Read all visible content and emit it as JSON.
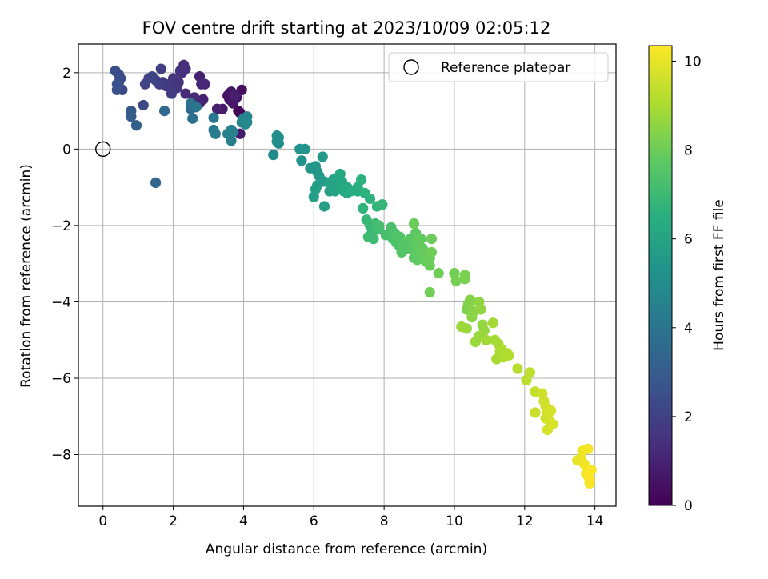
{
  "chart_data": {
    "type": "scatter",
    "title": "FOV centre drift starting at 2023/10/09 02:05:12",
    "xlabel": "Angular distance from reference (arcmin)",
    "ylabel": "Rotation from reference (arcmin)",
    "xlim": [
      -0.7,
      14.6
    ],
    "ylim": [
      -9.35,
      2.75
    ],
    "xticks": [
      0,
      2,
      4,
      6,
      8,
      10,
      12,
      14
    ],
    "yticks": [
      2,
      0,
      -2,
      -4,
      -6,
      -8
    ],
    "xtick_labels": [
      "0",
      "2",
      "4",
      "6",
      "8",
      "10",
      "12",
      "14"
    ],
    "ytick_labels": [
      "2",
      "0",
      "−2",
      "−4",
      "−6",
      "−8"
    ],
    "grid": true,
    "legend": {
      "placement": "top-right",
      "entries": [
        {
          "label": "Reference platepar",
          "marker": "open-circle"
        }
      ]
    },
    "reference_point": {
      "x": 0,
      "y": 0
    },
    "colorbar": {
      "label": "Hours from first FF file",
      "colormap": "viridis",
      "range": [
        0,
        10.35
      ],
      "ticks": [
        0,
        2,
        4,
        6,
        8,
        10
      ],
      "tick_labels": [
        "0",
        "2",
        "4",
        "6",
        "8",
        "10"
      ]
    },
    "series": [
      {
        "points": [
          [
            3.9,
            0.95,
            0.1
          ],
          [
            3.85,
            1.0,
            0.2
          ],
          [
            3.7,
            1.45,
            0.25
          ],
          [
            3.6,
            1.45,
            0.3
          ],
          [
            3.75,
            1.3,
            0.35
          ],
          [
            3.95,
            1.55,
            0.4
          ],
          [
            3.6,
            1.3,
            0.45
          ],
          [
            3.55,
            1.4,
            0.5
          ],
          [
            3.8,
            1.35,
            0.55
          ],
          [
            3.65,
            1.5,
            0.6
          ],
          [
            3.7,
            1.2,
            0.65
          ],
          [
            3.4,
            1.05,
            0.7
          ],
          [
            3.9,
            0.4,
            0.75
          ],
          [
            3.75,
            1.4,
            0.85
          ],
          [
            3.25,
            1.05,
            0.9
          ],
          [
            2.75,
            1.9,
            0.95
          ],
          [
            2.85,
            1.3,
            1.0
          ],
          [
            2.75,
            1.2,
            1.05
          ],
          [
            2.8,
            1.7,
            1.1
          ],
          [
            2.9,
            1.7,
            1.15
          ],
          [
            2.6,
            1.35,
            1.2
          ],
          [
            2.35,
            1.45,
            1.25
          ],
          [
            2.3,
            2.2,
            1.3
          ],
          [
            2.35,
            2.1,
            1.35
          ],
          [
            2.25,
            2.0,
            1.4
          ],
          [
            2.2,
            2.05,
            1.45
          ],
          [
            2.15,
            1.75,
            1.5
          ],
          [
            2.0,
            1.85,
            1.55
          ],
          [
            2.1,
            1.6,
            1.6
          ],
          [
            1.95,
            1.6,
            1.65
          ],
          [
            1.9,
            1.7,
            1.7
          ],
          [
            1.8,
            1.65,
            1.75
          ],
          [
            1.7,
            1.75,
            1.8
          ],
          [
            1.95,
            1.45,
            1.85
          ],
          [
            1.65,
            2.1,
            1.9
          ],
          [
            1.6,
            1.7,
            1.95
          ],
          [
            1.5,
            1.8,
            2.0
          ],
          [
            1.4,
            1.9,
            2.05
          ],
          [
            1.3,
            1.85,
            2.1
          ],
          [
            1.2,
            1.7,
            2.15
          ],
          [
            1.15,
            1.15,
            2.2
          ],
          [
            0.55,
            1.55,
            2.25
          ],
          [
            0.5,
            1.85,
            2.3
          ],
          [
            0.45,
            1.75,
            2.35
          ],
          [
            0.45,
            1.95,
            2.4
          ],
          [
            0.35,
            2.05,
            2.45
          ],
          [
            0.4,
            1.55,
            2.5
          ],
          [
            0.4,
            1.7,
            2.55
          ],
          [
            0.8,
            1.0,
            2.9
          ],
          [
            0.8,
            0.85,
            3.0
          ],
          [
            0.95,
            0.62,
            3.2
          ],
          [
            1.5,
            -0.88,
            3.4
          ],
          [
            1.75,
            1.0,
            3.5
          ],
          [
            2.5,
            1.05,
            3.6
          ],
          [
            2.55,
            1.1,
            3.7
          ],
          [
            2.55,
            0.8,
            3.8
          ],
          [
            2.5,
            1.2,
            3.9
          ],
          [
            2.65,
            1.1,
            4.0
          ],
          [
            3.15,
            0.82,
            4.1
          ],
          [
            3.15,
            0.5,
            4.2
          ],
          [
            3.2,
            0.4,
            4.3
          ],
          [
            3.55,
            0.4,
            4.35
          ],
          [
            3.65,
            0.22,
            4.4
          ],
          [
            3.7,
            0.45,
            4.45
          ],
          [
            3.65,
            0.5,
            4.5
          ],
          [
            3.95,
            0.7,
            4.6
          ],
          [
            4.05,
            0.65,
            4.65
          ],
          [
            4.0,
            0.8,
            4.7
          ],
          [
            4.1,
            0.85,
            4.75
          ],
          [
            4.1,
            0.7,
            4.8
          ],
          [
            4.85,
            -0.15,
            4.9
          ],
          [
            5.0,
            0.15,
            5.0
          ],
          [
            4.95,
            0.35,
            5.05
          ],
          [
            4.95,
            0.2,
            5.1
          ],
          [
            5.0,
            0.3,
            5.15
          ],
          [
            5.6,
            0.0,
            5.2
          ],
          [
            5.65,
            -0.3,
            5.25
          ],
          [
            5.75,
            0.0,
            5.3
          ],
          [
            5.9,
            -0.5,
            5.35
          ],
          [
            6.05,
            -0.45,
            5.4
          ],
          [
            6.1,
            -0.6,
            5.45
          ],
          [
            6.15,
            -0.7,
            5.5
          ],
          [
            6.25,
            -0.2,
            5.55
          ],
          [
            6.3,
            -0.85,
            5.6
          ],
          [
            6.05,
            -1.05,
            5.65
          ],
          [
            6.1,
            -0.95,
            5.7
          ],
          [
            6.0,
            -1.25,
            5.75
          ],
          [
            6.3,
            -1.5,
            5.8
          ],
          [
            6.45,
            -1.1,
            5.85
          ],
          [
            6.55,
            -0.8,
            5.9
          ],
          [
            6.6,
            -1.0,
            5.95
          ],
          [
            6.5,
            -0.9,
            6.0
          ],
          [
            6.6,
            -1.1,
            6.02
          ],
          [
            6.7,
            -0.75,
            6.05
          ],
          [
            6.75,
            -0.95,
            6.1
          ],
          [
            6.75,
            -0.65,
            6.15
          ],
          [
            6.8,
            -0.85,
            6.2
          ],
          [
            6.85,
            -1.1,
            6.25
          ],
          [
            6.95,
            -1.0,
            6.3
          ],
          [
            6.95,
            -1.15,
            6.35
          ],
          [
            7.05,
            -1.1,
            6.4
          ],
          [
            7.25,
            -1.1,
            6.45
          ],
          [
            7.25,
            -1.0,
            6.5
          ],
          [
            7.35,
            -0.8,
            6.55
          ],
          [
            7.45,
            -1.15,
            6.6
          ],
          [
            7.6,
            -1.3,
            6.65
          ],
          [
            7.4,
            -1.55,
            6.7
          ],
          [
            7.8,
            -1.5,
            6.75
          ],
          [
            7.95,
            -1.45,
            6.8
          ],
          [
            7.5,
            -1.85,
            6.85
          ],
          [
            7.6,
            -2.0,
            6.9
          ],
          [
            7.7,
            -2.1,
            6.95
          ],
          [
            7.65,
            -2.2,
            7.0
          ],
          [
            7.55,
            -2.3,
            7.02
          ],
          [
            7.7,
            -2.35,
            7.05
          ],
          [
            7.75,
            -1.95,
            7.1
          ],
          [
            7.85,
            -2.1,
            7.15
          ],
          [
            7.85,
            -2.0,
            7.2
          ],
          [
            8.05,
            -2.25,
            7.25
          ],
          [
            8.2,
            -2.05,
            7.3
          ],
          [
            8.25,
            -2.35,
            7.35
          ],
          [
            8.3,
            -2.2,
            7.38
          ],
          [
            8.35,
            -2.45,
            7.4
          ],
          [
            8.4,
            -2.5,
            7.42
          ],
          [
            8.45,
            -2.3,
            7.45
          ],
          [
            8.5,
            -2.4,
            7.48
          ],
          [
            8.55,
            -2.55,
            7.5
          ],
          [
            8.5,
            -2.7,
            7.52
          ],
          [
            8.6,
            -2.45,
            7.55
          ],
          [
            8.65,
            -2.6,
            7.58
          ],
          [
            8.7,
            -2.4,
            7.6
          ],
          [
            8.75,
            -2.35,
            7.62
          ],
          [
            8.8,
            -2.5,
            7.65
          ],
          [
            8.85,
            -2.65,
            7.68
          ],
          [
            8.85,
            -2.85,
            7.7
          ],
          [
            8.9,
            -2.2,
            7.72
          ],
          [
            8.9,
            -2.45,
            7.74
          ],
          [
            8.95,
            -2.7,
            7.76
          ],
          [
            8.95,
            -2.9,
            7.78
          ],
          [
            9.0,
            -2.55,
            7.8
          ],
          [
            9.05,
            -2.75,
            7.82
          ],
          [
            9.05,
            -2.35,
            7.84
          ],
          [
            9.1,
            -2.6,
            7.86
          ],
          [
            9.15,
            -2.8,
            7.88
          ],
          [
            9.2,
            -2.95,
            7.9
          ],
          [
            9.25,
            -2.75,
            7.92
          ],
          [
            9.3,
            -2.85,
            7.94
          ],
          [
            9.3,
            -3.05,
            7.96
          ],
          [
            8.85,
            -1.95,
            7.98
          ],
          [
            9.35,
            -2.35,
            8.0
          ],
          [
            9.35,
            -2.7,
            8.02
          ],
          [
            9.55,
            -3.25,
            8.05
          ],
          [
            9.3,
            -3.75,
            8.08
          ],
          [
            10.0,
            -3.25,
            8.1
          ],
          [
            10.05,
            -3.45,
            8.15
          ],
          [
            10.3,
            -3.4,
            8.2
          ],
          [
            10.3,
            -3.3,
            8.25
          ],
          [
            10.35,
            -4.2,
            8.3
          ],
          [
            10.4,
            -4.05,
            8.35
          ],
          [
            10.45,
            -3.95,
            8.4
          ],
          [
            10.55,
            -4.25,
            8.45
          ],
          [
            10.5,
            -4.4,
            8.5
          ],
          [
            10.7,
            -4.0,
            8.55
          ],
          [
            10.75,
            -4.2,
            8.6
          ],
          [
            10.8,
            -4.6,
            8.65
          ],
          [
            10.85,
            -4.75,
            8.7
          ],
          [
            10.7,
            -4.9,
            8.72
          ],
          [
            10.6,
            -5.05,
            8.75
          ],
          [
            10.2,
            -4.65,
            8.78
          ],
          [
            10.35,
            -4.7,
            8.8
          ],
          [
            10.9,
            -5.0,
            8.85
          ],
          [
            11.1,
            -4.55,
            8.9
          ],
          [
            11.15,
            -5.0,
            8.92
          ],
          [
            11.25,
            -5.1,
            8.95
          ],
          [
            11.2,
            -5.5,
            8.98
          ],
          [
            11.3,
            -5.3,
            9.0
          ],
          [
            11.35,
            -5.25,
            9.05
          ],
          [
            11.4,
            -5.45,
            9.08
          ],
          [
            11.5,
            -5.35,
            9.1
          ],
          [
            11.55,
            -5.4,
            9.12
          ],
          [
            11.8,
            -5.75,
            9.2
          ],
          [
            12.05,
            -6.05,
            9.3
          ],
          [
            12.15,
            -5.85,
            9.35
          ],
          [
            12.3,
            -6.35,
            9.45
          ],
          [
            12.3,
            -6.9,
            9.5
          ],
          [
            12.5,
            -6.4,
            9.55
          ],
          [
            12.55,
            -6.6,
            9.58
          ],
          [
            12.6,
            -6.75,
            9.6
          ],
          [
            12.6,
            -7.05,
            9.62
          ],
          [
            12.65,
            -6.9,
            9.65
          ],
          [
            12.7,
            -7.1,
            9.68
          ],
          [
            12.75,
            -6.85,
            9.7
          ],
          [
            12.65,
            -7.35,
            9.72
          ],
          [
            12.8,
            -7.2,
            9.75
          ],
          [
            13.5,
            -8.15,
            10.0
          ],
          [
            13.6,
            -8.1,
            10.05
          ],
          [
            13.65,
            -7.9,
            10.1
          ],
          [
            13.7,
            -8.25,
            10.15
          ],
          [
            13.75,
            -8.5,
            10.18
          ],
          [
            13.8,
            -7.85,
            10.2
          ],
          [
            13.8,
            -8.55,
            10.22
          ],
          [
            13.85,
            -8.75,
            10.25
          ],
          [
            13.85,
            -8.65,
            10.28
          ],
          [
            13.9,
            -8.4,
            10.3
          ]
        ]
      }
    ]
  }
}
